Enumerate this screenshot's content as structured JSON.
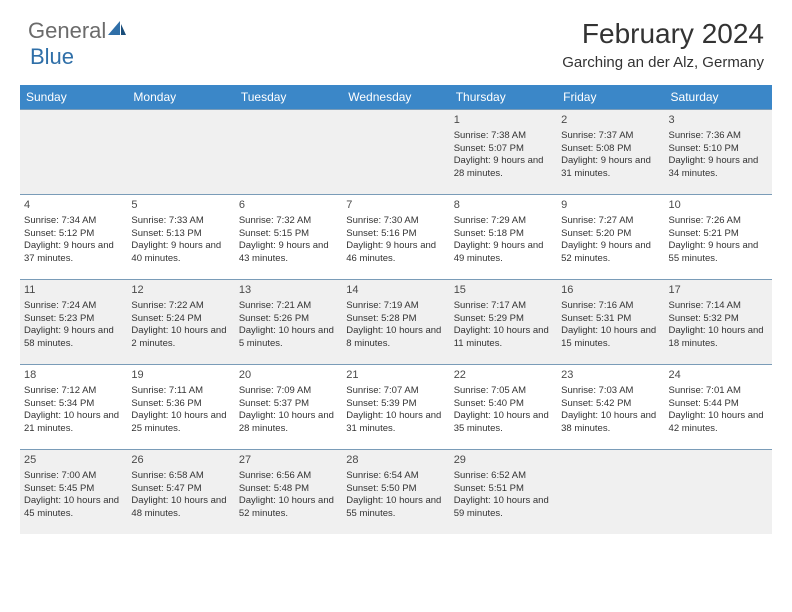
{
  "logo": {
    "text1": "General",
    "text2": "Blue"
  },
  "title": "February 2024",
  "location": "Garching an der Alz, Germany",
  "colors": {
    "header_bg": "#3b87c8",
    "header_text": "#ffffff",
    "shaded_bg": "#f0f0f0",
    "border": "#7a9cb8",
    "logo_gray": "#6b6b6b",
    "logo_blue": "#2f6fa8"
  },
  "daysOfWeek": [
    "Sunday",
    "Monday",
    "Tuesday",
    "Wednesday",
    "Thursday",
    "Friday",
    "Saturday"
  ],
  "weeks": [
    [
      {
        "n": "",
        "sr": "",
        "ss": "",
        "dl": ""
      },
      {
        "n": "",
        "sr": "",
        "ss": "",
        "dl": ""
      },
      {
        "n": "",
        "sr": "",
        "ss": "",
        "dl": ""
      },
      {
        "n": "",
        "sr": "",
        "ss": "",
        "dl": ""
      },
      {
        "n": "1",
        "sr": "Sunrise: 7:38 AM",
        "ss": "Sunset: 5:07 PM",
        "dl": "Daylight: 9 hours and 28 minutes."
      },
      {
        "n": "2",
        "sr": "Sunrise: 7:37 AM",
        "ss": "Sunset: 5:08 PM",
        "dl": "Daylight: 9 hours and 31 minutes."
      },
      {
        "n": "3",
        "sr": "Sunrise: 7:36 AM",
        "ss": "Sunset: 5:10 PM",
        "dl": "Daylight: 9 hours and 34 minutes."
      }
    ],
    [
      {
        "n": "4",
        "sr": "Sunrise: 7:34 AM",
        "ss": "Sunset: 5:12 PM",
        "dl": "Daylight: 9 hours and 37 minutes."
      },
      {
        "n": "5",
        "sr": "Sunrise: 7:33 AM",
        "ss": "Sunset: 5:13 PM",
        "dl": "Daylight: 9 hours and 40 minutes."
      },
      {
        "n": "6",
        "sr": "Sunrise: 7:32 AM",
        "ss": "Sunset: 5:15 PM",
        "dl": "Daylight: 9 hours and 43 minutes."
      },
      {
        "n": "7",
        "sr": "Sunrise: 7:30 AM",
        "ss": "Sunset: 5:16 PM",
        "dl": "Daylight: 9 hours and 46 minutes."
      },
      {
        "n": "8",
        "sr": "Sunrise: 7:29 AM",
        "ss": "Sunset: 5:18 PM",
        "dl": "Daylight: 9 hours and 49 minutes."
      },
      {
        "n": "9",
        "sr": "Sunrise: 7:27 AM",
        "ss": "Sunset: 5:20 PM",
        "dl": "Daylight: 9 hours and 52 minutes."
      },
      {
        "n": "10",
        "sr": "Sunrise: 7:26 AM",
        "ss": "Sunset: 5:21 PM",
        "dl": "Daylight: 9 hours and 55 minutes."
      }
    ],
    [
      {
        "n": "11",
        "sr": "Sunrise: 7:24 AM",
        "ss": "Sunset: 5:23 PM",
        "dl": "Daylight: 9 hours and 58 minutes."
      },
      {
        "n": "12",
        "sr": "Sunrise: 7:22 AM",
        "ss": "Sunset: 5:24 PM",
        "dl": "Daylight: 10 hours and 2 minutes."
      },
      {
        "n": "13",
        "sr": "Sunrise: 7:21 AM",
        "ss": "Sunset: 5:26 PM",
        "dl": "Daylight: 10 hours and 5 minutes."
      },
      {
        "n": "14",
        "sr": "Sunrise: 7:19 AM",
        "ss": "Sunset: 5:28 PM",
        "dl": "Daylight: 10 hours and 8 minutes."
      },
      {
        "n": "15",
        "sr": "Sunrise: 7:17 AM",
        "ss": "Sunset: 5:29 PM",
        "dl": "Daylight: 10 hours and 11 minutes."
      },
      {
        "n": "16",
        "sr": "Sunrise: 7:16 AM",
        "ss": "Sunset: 5:31 PM",
        "dl": "Daylight: 10 hours and 15 minutes."
      },
      {
        "n": "17",
        "sr": "Sunrise: 7:14 AM",
        "ss": "Sunset: 5:32 PM",
        "dl": "Daylight: 10 hours and 18 minutes."
      }
    ],
    [
      {
        "n": "18",
        "sr": "Sunrise: 7:12 AM",
        "ss": "Sunset: 5:34 PM",
        "dl": "Daylight: 10 hours and 21 minutes."
      },
      {
        "n": "19",
        "sr": "Sunrise: 7:11 AM",
        "ss": "Sunset: 5:36 PM",
        "dl": "Daylight: 10 hours and 25 minutes."
      },
      {
        "n": "20",
        "sr": "Sunrise: 7:09 AM",
        "ss": "Sunset: 5:37 PM",
        "dl": "Daylight: 10 hours and 28 minutes."
      },
      {
        "n": "21",
        "sr": "Sunrise: 7:07 AM",
        "ss": "Sunset: 5:39 PM",
        "dl": "Daylight: 10 hours and 31 minutes."
      },
      {
        "n": "22",
        "sr": "Sunrise: 7:05 AM",
        "ss": "Sunset: 5:40 PM",
        "dl": "Daylight: 10 hours and 35 minutes."
      },
      {
        "n": "23",
        "sr": "Sunrise: 7:03 AM",
        "ss": "Sunset: 5:42 PM",
        "dl": "Daylight: 10 hours and 38 minutes."
      },
      {
        "n": "24",
        "sr": "Sunrise: 7:01 AM",
        "ss": "Sunset: 5:44 PM",
        "dl": "Daylight: 10 hours and 42 minutes."
      }
    ],
    [
      {
        "n": "25",
        "sr": "Sunrise: 7:00 AM",
        "ss": "Sunset: 5:45 PM",
        "dl": "Daylight: 10 hours and 45 minutes."
      },
      {
        "n": "26",
        "sr": "Sunrise: 6:58 AM",
        "ss": "Sunset: 5:47 PM",
        "dl": "Daylight: 10 hours and 48 minutes."
      },
      {
        "n": "27",
        "sr": "Sunrise: 6:56 AM",
        "ss": "Sunset: 5:48 PM",
        "dl": "Daylight: 10 hours and 52 minutes."
      },
      {
        "n": "28",
        "sr": "Sunrise: 6:54 AM",
        "ss": "Sunset: 5:50 PM",
        "dl": "Daylight: 10 hours and 55 minutes."
      },
      {
        "n": "29",
        "sr": "Sunrise: 6:52 AM",
        "ss": "Sunset: 5:51 PM",
        "dl": "Daylight: 10 hours and 59 minutes."
      },
      {
        "n": "",
        "sr": "",
        "ss": "",
        "dl": ""
      },
      {
        "n": "",
        "sr": "",
        "ss": "",
        "dl": ""
      }
    ]
  ]
}
